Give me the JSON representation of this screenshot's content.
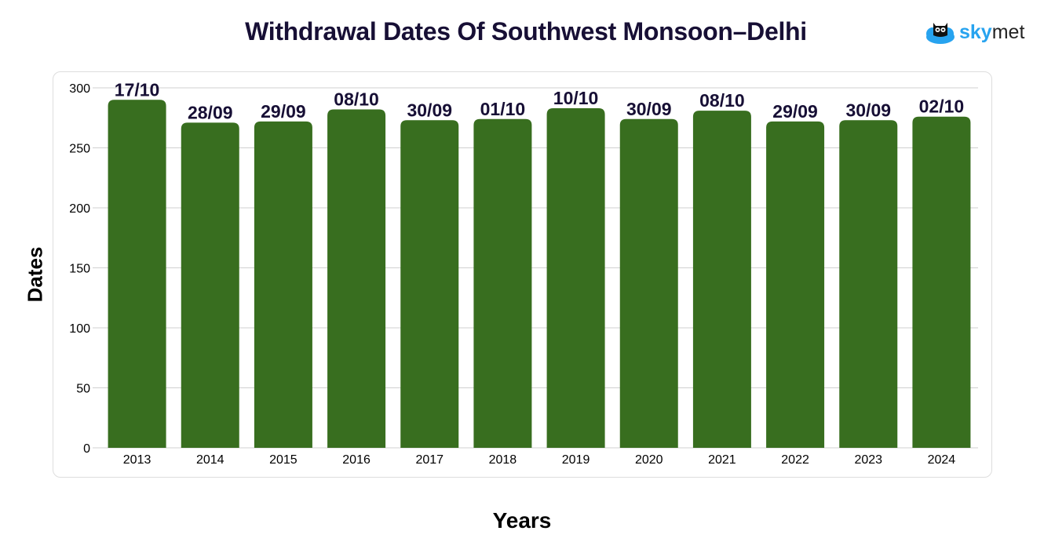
{
  "chart_data": {
    "type": "bar",
    "title": "Withdrawal Dates Of Southwest Monsoon–Delhi",
    "xlabel": "Years",
    "ylabel": "Dates",
    "ylim": [
      0,
      300
    ],
    "yticks": [
      0,
      50,
      100,
      150,
      200,
      250,
      300
    ],
    "grid": true,
    "categories": [
      "2013",
      "2014",
      "2015",
      "2016",
      "2017",
      "2018",
      "2019",
      "2020",
      "2021",
      "2022",
      "2023",
      "2024"
    ],
    "values": [
      290,
      271,
      272,
      282,
      273,
      274,
      283,
      274,
      281,
      272,
      273,
      276
    ],
    "data_labels": [
      "17/10",
      "28/09",
      "29/09",
      "08/10",
      "30/09",
      "01/10",
      "10/10",
      "30/09",
      "08/10",
      "29/09",
      "30/09",
      "02/10"
    ],
    "bar_color": "#386e1f",
    "label_color": "#170f35"
  },
  "logo": {
    "text_bold": "sky",
    "text_rest": "met"
  }
}
